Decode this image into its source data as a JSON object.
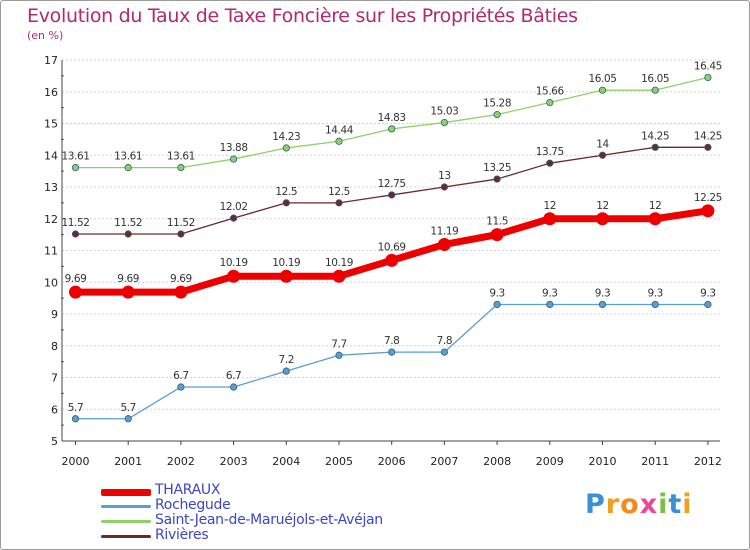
{
  "title": "Evolution du Taux de Taxe Foncière sur les Propriétés Bâties",
  "subtitle": "(en %)",
  "logo": "Proxiti",
  "chart_data": {
    "type": "line",
    "title": "Evolution du Taux de Taxe Foncière sur les Propriétés Bâties",
    "ylabel": "(en %)",
    "xlabel": "",
    "x": [
      "2000",
      "2001",
      "2002",
      "2003",
      "2004",
      "2005",
      "2006",
      "2007",
      "2008",
      "2009",
      "2010",
      "2011",
      "2012"
    ],
    "yticks": [
      5,
      6,
      7,
      8,
      9,
      10,
      11,
      12,
      13,
      14,
      15,
      16,
      17
    ],
    "ylim": [
      5,
      17
    ],
    "grid": "horizontal",
    "legend": "bottom-left",
    "series": [
      {
        "name": "Saint-Jean-de-Maruéjols-et-Avéjan",
        "color": "#8fd166",
        "width": 1.3,
        "marker": 3.2,
        "values": [
          13.61,
          13.61,
          13.61,
          13.88,
          14.23,
          14.44,
          14.83,
          15.03,
          15.28,
          15.66,
          16.05,
          16.05,
          16.45
        ],
        "labels": [
          "13.61",
          "13.61",
          "13.61",
          "13.88",
          "14.23",
          "14.44",
          "14.83",
          "15.03",
          "15.28",
          "15.66",
          "16.05",
          "16.05",
          "16.45"
        ]
      },
      {
        "name": "Rivières",
        "color": "#6b2a2a",
        "width": 1.3,
        "marker": 3.2,
        "values": [
          11.52,
          11.52,
          11.52,
          12.02,
          12.5,
          12.5,
          12.75,
          13,
          13.25,
          13.75,
          14,
          14.25,
          14.25
        ],
        "labels": [
          "11.52",
          "11.52",
          "11.52",
          "12.02",
          "12.5",
          "12.5",
          "12.75",
          "13",
          "13.25",
          "13.75",
          "14",
          "14.25",
          "14.25"
        ]
      },
      {
        "name": "Rochegude",
        "color": "#5b9fd1",
        "width": 1.3,
        "marker": 3.2,
        "values": [
          5.7,
          5.7,
          6.7,
          6.7,
          7.2,
          7.7,
          7.8,
          7.8,
          9.3,
          9.3,
          9.3,
          9.3,
          9.3
        ],
        "labels": [
          "5.7",
          "5.7",
          "6.7",
          "6.7",
          "7.2",
          "7.7",
          "7.8",
          "7.8",
          "9.3",
          "9.3",
          "9.3",
          "9.3",
          "9.3"
        ]
      },
      {
        "name": "THARAUX",
        "color": "#ee0000",
        "width": 7,
        "marker": 6.5,
        "values": [
          9.69,
          9.69,
          9.69,
          10.19,
          10.19,
          10.19,
          10.69,
          11.19,
          11.5,
          12,
          12,
          12,
          12.25
        ],
        "labels": [
          "9.69",
          "9.69",
          "9.69",
          "10.19",
          "10.19",
          "10.19",
          "10.69",
          "11.19",
          "11.5",
          "12",
          "12",
          "12",
          "12.25"
        ]
      }
    ]
  },
  "legend": [
    {
      "name": "THARAUX",
      "color": "#ee0000"
    },
    {
      "name": "Rochegude",
      "color": "#5b9fd1"
    },
    {
      "name": "Saint-Jean-de-Maruéjols-et-Avéjan",
      "color": "#8fd166"
    },
    {
      "name": "Rivières",
      "color": "#6b2a2a"
    }
  ]
}
